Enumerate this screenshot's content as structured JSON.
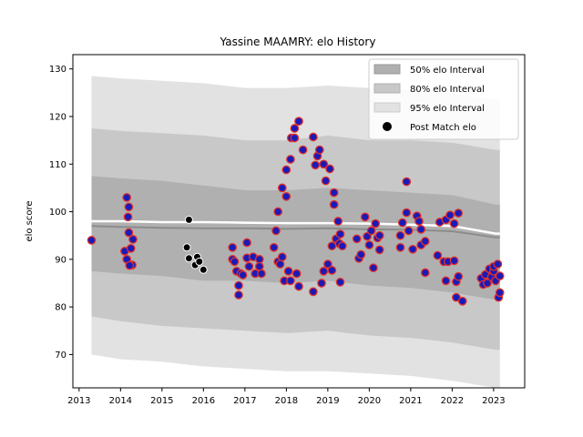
{
  "chart_data": {
    "type": "scatter",
    "title": "Yassine MAAMRY: elo History",
    "xlabel": "",
    "ylabel": "elo score",
    "xlim": [
      2012.85,
      2023.75
    ],
    "ylim": [
      63,
      133
    ],
    "x_ticks": [
      2013,
      2014,
      2015,
      2016,
      2017,
      2018,
      2019,
      2020,
      2021,
      2022,
      2023
    ],
    "y_ticks": [
      70,
      80,
      90,
      100,
      110,
      120,
      130
    ],
    "legend": {
      "placement": "top-right",
      "entries": [
        "50% elo Interval",
        "80% elo Interval",
        "95% elo Interval",
        "Post Match elo"
      ]
    },
    "colors": {
      "band50": "#b0b0b0",
      "band80": "#c8c8c8",
      "band95": "#e2e2e2",
      "median_line": "#8c8c8c",
      "mean_line": "#ffffff",
      "point_fill": "#1a1ab8",
      "point_edge": "#e2302a",
      "black_point": "#000000"
    },
    "intervals": {
      "x": [
        2013.3,
        2014.0,
        2015.0,
        2016.0,
        2017.0,
        2018.0,
        2019.0,
        2020.0,
        2021.0,
        2022.0,
        2023.05,
        2023.15
      ],
      "p95_upper": [
        128.5,
        128.0,
        127.5,
        127.0,
        126.0,
        126.0,
        126.5,
        126.0,
        125.5,
        125.0,
        123.5,
        123.5
      ],
      "p80_upper": [
        117.5,
        117.0,
        116.5,
        116.0,
        115.0,
        115.0,
        116.0,
        115.0,
        115.0,
        114.5,
        113.0,
        113.0
      ],
      "p50_upper": [
        107.5,
        107.0,
        106.5,
        105.5,
        104.5,
        104.5,
        105.0,
        104.5,
        104.0,
        103.5,
        101.5,
        101.5
      ],
      "p50_lower": [
        87.5,
        87.0,
        86.5,
        85.5,
        85.5,
        85.0,
        85.5,
        84.5,
        84.0,
        83.0,
        81.5,
        81.5
      ],
      "p80_lower": [
        78.0,
        77.0,
        76.0,
        75.5,
        75.0,
        74.5,
        75.0,
        74.0,
        73.5,
        72.5,
        71.0,
        71.0
      ],
      "p95_lower": [
        70.0,
        69.0,
        68.5,
        67.5,
        67.0,
        66.5,
        66.5,
        66.0,
        65.5,
        64.5,
        63.0,
        63.0
      ],
      "median": [
        97.0,
        96.8,
        96.6,
        96.5,
        96.5,
        96.4,
        96.5,
        96.3,
        96.2,
        95.9,
        94.6,
        94.6
      ],
      "mean": [
        98.0,
        98.0,
        97.8,
        97.8,
        97.7,
        97.6,
        97.6,
        97.5,
        97.3,
        97.0,
        95.4,
        95.4
      ]
    },
    "series": [
      {
        "name": "Post Match elo",
        "points": [
          [
            2013.3,
            94.0
          ],
          [
            2014.1,
            91.7
          ],
          [
            2014.15,
            103.0
          ],
          [
            2014.15,
            90.0
          ],
          [
            2014.2,
            101.0
          ],
          [
            2014.2,
            95.6
          ],
          [
            2014.18,
            98.9
          ],
          [
            2014.25,
            92.3
          ],
          [
            2014.28,
            88.8
          ],
          [
            2014.3,
            94.2
          ],
          [
            2014.22,
            88.7
          ],
          [
            2016.7,
            92.5
          ],
          [
            2016.7,
            90.0
          ],
          [
            2016.75,
            89.5
          ],
          [
            2016.8,
            87.5
          ],
          [
            2016.85,
            82.5
          ],
          [
            2016.85,
            84.5
          ],
          [
            2016.9,
            87.0
          ],
          [
            2016.95,
            86.7
          ],
          [
            2017.05,
            90.3
          ],
          [
            2017.05,
            93.5
          ],
          [
            2017.1,
            88.5
          ],
          [
            2017.2,
            90.5
          ],
          [
            2017.25,
            87.0
          ],
          [
            2017.35,
            90.0
          ],
          [
            2017.35,
            88.5
          ],
          [
            2017.4,
            87.0
          ],
          [
            2017.7,
            92.5
          ],
          [
            2017.75,
            96.0
          ],
          [
            2017.8,
            100.0
          ],
          [
            2017.8,
            89.5
          ],
          [
            2017.85,
            89.0
          ],
          [
            2017.9,
            90.5
          ],
          [
            2017.9,
            105.0
          ],
          [
            2017.95,
            85.5
          ],
          [
            2018.0,
            103.2
          ],
          [
            2018.0,
            108.8
          ],
          [
            2018.05,
            87.5
          ],
          [
            2018.1,
            85.5
          ],
          [
            2018.1,
            111.0
          ],
          [
            2018.12,
            115.5
          ],
          [
            2018.2,
            117.5
          ],
          [
            2018.2,
            115.5
          ],
          [
            2018.25,
            87.0
          ],
          [
            2018.3,
            119.0
          ],
          [
            2018.4,
            113.0
          ],
          [
            2018.3,
            84.3
          ],
          [
            2018.65,
            83.2
          ],
          [
            2018.65,
            115.7
          ],
          [
            2018.7,
            109.8
          ],
          [
            2018.75,
            111.7
          ],
          [
            2018.8,
            113.0
          ],
          [
            2018.85,
            85.0
          ],
          [
            2018.9,
            110.0
          ],
          [
            2018.9,
            87.5
          ],
          [
            2018.95,
            106.5
          ],
          [
            2019.0,
            89.0
          ],
          [
            2019.05,
            109.0
          ],
          [
            2019.1,
            87.7
          ],
          [
            2019.1,
            92.8
          ],
          [
            2019.15,
            101.5
          ],
          [
            2019.15,
            104.0
          ],
          [
            2019.2,
            94.3
          ],
          [
            2019.25,
            98.0
          ],
          [
            2019.28,
            93.3
          ],
          [
            2019.3,
            85.2
          ],
          [
            2019.3,
            95.3
          ],
          [
            2019.35,
            92.8
          ],
          [
            2019.7,
            94.3
          ],
          [
            2019.75,
            90.2
          ],
          [
            2019.8,
            91.0
          ],
          [
            2019.9,
            98.9
          ],
          [
            2019.95,
            94.8
          ],
          [
            2020.0,
            93.0
          ],
          [
            2020.05,
            96.0
          ],
          [
            2020.1,
            88.2
          ],
          [
            2020.15,
            97.5
          ],
          [
            2020.2,
            94.5
          ],
          [
            2020.25,
            92.0
          ],
          [
            2020.25,
            95.0
          ],
          [
            2020.75,
            92.5
          ],
          [
            2020.75,
            95.0
          ],
          [
            2020.8,
            97.7
          ],
          [
            2020.9,
            99.8
          ],
          [
            2020.9,
            106.3
          ],
          [
            2020.95,
            96.0
          ],
          [
            2021.05,
            92.1
          ],
          [
            2021.15,
            99.1
          ],
          [
            2021.2,
            98.0
          ],
          [
            2021.25,
            96.3
          ],
          [
            2021.25,
            93.0
          ],
          [
            2021.35,
            93.8
          ],
          [
            2021.35,
            87.2
          ],
          [
            2021.65,
            90.8
          ],
          [
            2021.7,
            97.8
          ],
          [
            2021.8,
            89.5
          ],
          [
            2021.85,
            98.3
          ],
          [
            2021.85,
            85.5
          ],
          [
            2021.9,
            89.5
          ],
          [
            2021.95,
            99.3
          ],
          [
            2022.05,
            97.5
          ],
          [
            2022.05,
            89.7
          ],
          [
            2022.1,
            85.3
          ],
          [
            2022.1,
            82.0
          ],
          [
            2022.15,
            86.4
          ],
          [
            2022.15,
            99.7
          ],
          [
            2022.25,
            81.2
          ],
          [
            2022.7,
            86.0
          ],
          [
            2022.75,
            84.7
          ],
          [
            2022.8,
            86.8
          ],
          [
            2022.85,
            85.0
          ],
          [
            2022.9,
            88.0
          ],
          [
            2022.95,
            86.3
          ],
          [
            2023.0,
            87.5
          ],
          [
            2023.0,
            88.5
          ],
          [
            2023.05,
            85.5
          ],
          [
            2023.1,
            89.0
          ],
          [
            2023.12,
            82.0
          ],
          [
            2023.15,
            83.0
          ],
          [
            2023.15,
            86.5
          ]
        ]
      },
      {
        "name": "black-points",
        "points": [
          [
            2015.65,
            98.3
          ],
          [
            2015.6,
            92.5
          ],
          [
            2015.65,
            90.2
          ],
          [
            2015.8,
            88.8
          ],
          [
            2015.85,
            90.5
          ],
          [
            2015.9,
            89.5
          ],
          [
            2016.0,
            87.8
          ]
        ]
      }
    ]
  }
}
